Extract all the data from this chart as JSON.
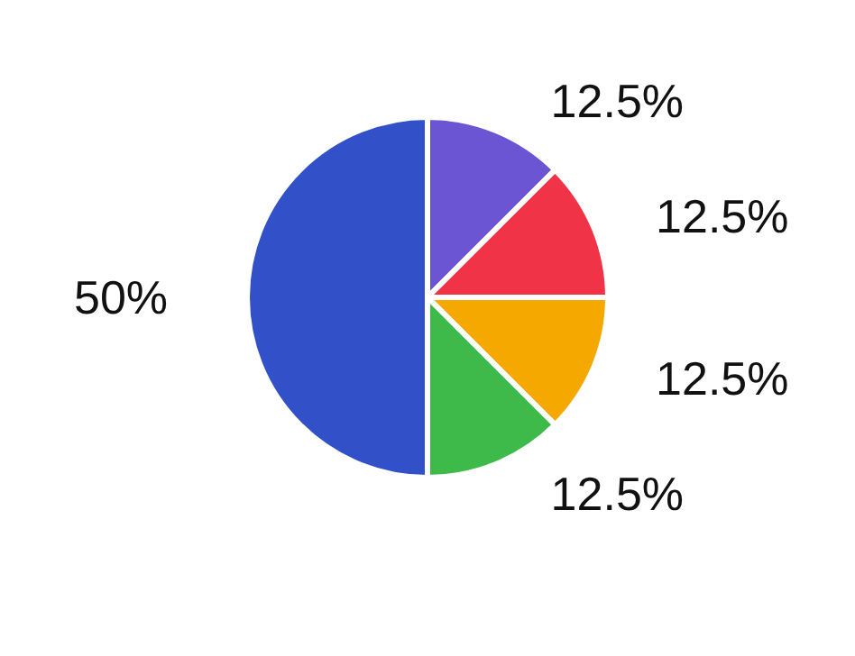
{
  "chart_data": {
    "type": "pie",
    "categories": [
      null,
      null,
      null,
      null,
      null
    ],
    "values": [
      12.5,
      12.5,
      12.5,
      12.5,
      50
    ],
    "colors": [
      "#6b55d2",
      "#f03347",
      "#f5a800",
      "#3dba4a",
      "#3251c9"
    ],
    "value_labels": [
      "12.5%",
      "12.5%",
      "12.5%",
      "12.5%",
      "50%"
    ]
  }
}
